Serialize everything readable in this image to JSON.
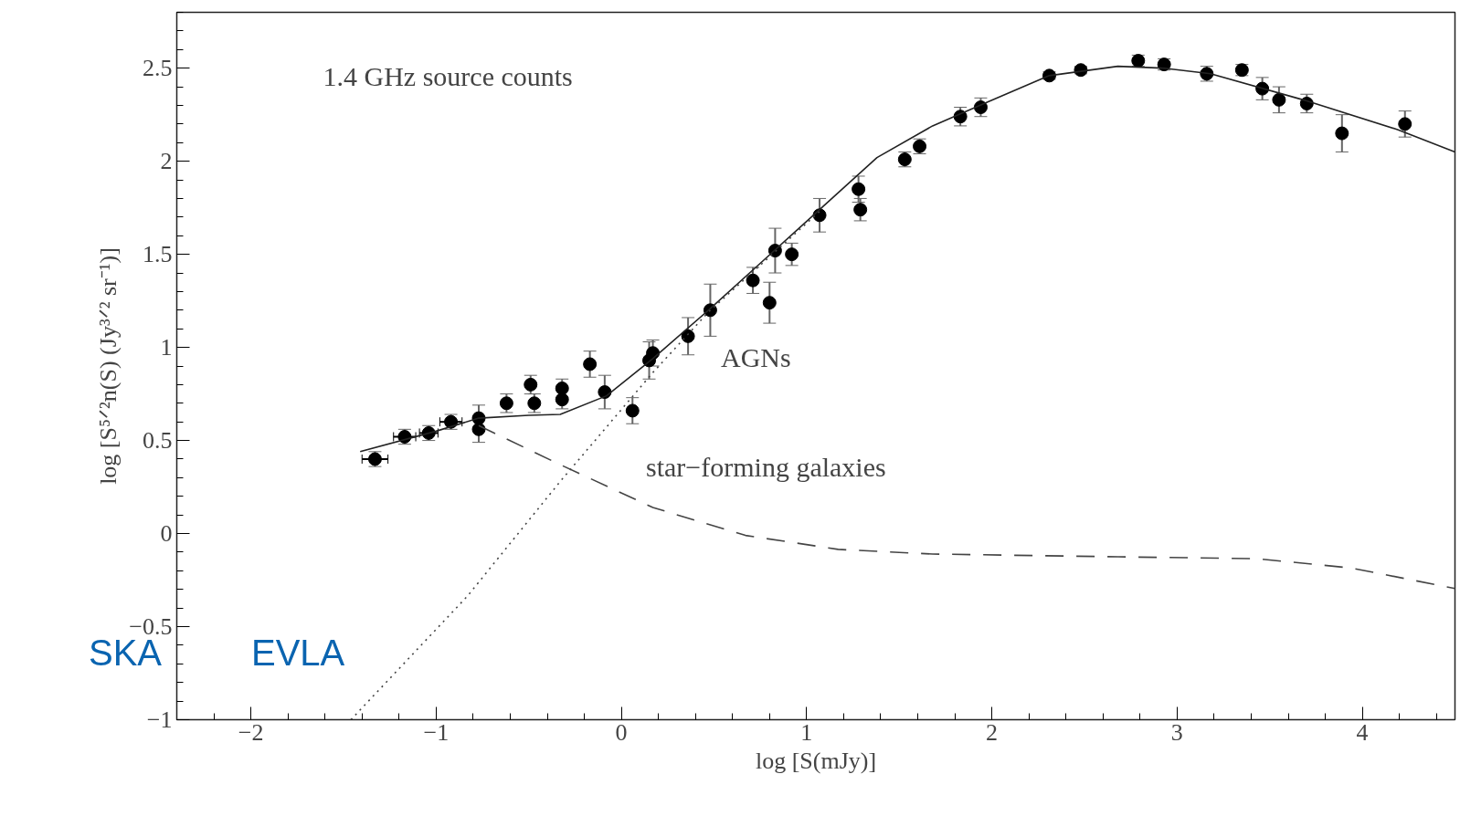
{
  "chart_data": {
    "type": "scatter",
    "title": "1.4 GHz source counts",
    "xlabel": "log [S(mJy)]",
    "ylabel": "log [S⁵ᐟ²n(S) (Jy³ᐟ² sr⁻¹)]",
    "xlim": [
      -2.4,
      4.5
    ],
    "ylim": [
      -1,
      2.8
    ],
    "xticks": [
      {
        "value": -2,
        "label": "−2"
      },
      {
        "value": -1,
        "label": "−1"
      },
      0,
      1,
      2,
      3,
      4
    ],
    "yticks": [
      {
        "value": -1,
        "label": "−1"
      },
      {
        "value": -0.5,
        "label": "−0.5"
      },
      0,
      0.5,
      1,
      1.5,
      2,
      2.5
    ],
    "grid": false,
    "series": [
      {
        "marker": "circle",
        "color": "#000000",
        "x": [
          -1.33,
          -1.17,
          -1.04,
          -0.92,
          -0.77,
          -0.77,
          -0.62,
          -0.49,
          -0.47,
          -0.32,
          -0.32,
          -0.17,
          -0.09,
          0.06,
          0.15,
          0.17,
          0.36,
          0.48,
          0.71,
          0.8,
          0.83,
          0.92,
          1.07,
          1.28,
          1.29,
          1.53,
          1.61,
          1.83,
          1.94,
          2.31,
          2.48,
          2.79,
          2.93,
          3.16,
          3.35,
          3.46,
          3.55,
          3.7,
          3.89,
          4.23
        ],
        "values": [
          0.4,
          0.52,
          0.54,
          0.6,
          0.62,
          0.56,
          0.7,
          0.8,
          0.7,
          0.78,
          0.72,
          0.91,
          0.76,
          0.66,
          0.93,
          0.97,
          1.06,
          1.2,
          1.36,
          1.24,
          1.52,
          1.5,
          1.71,
          1.85,
          1.74,
          2.01,
          2.08,
          2.24,
          2.29,
          2.46,
          2.49,
          2.54,
          2.52,
          2.47,
          2.49,
          2.39,
          2.33,
          2.31,
          2.15,
          2.2
        ],
        "errors": [
          0.04,
          0.04,
          0.04,
          0.04,
          0.07,
          0.07,
          0.05,
          0.05,
          0.05,
          0.05,
          0.05,
          0.07,
          0.09,
          0.07,
          0.1,
          0.07,
          0.1,
          0.14,
          0.07,
          0.11,
          0.12,
          0.06,
          0.09,
          0.07,
          0.06,
          0.04,
          0.04,
          0.05,
          0.05,
          0.02,
          0.02,
          0.03,
          0.03,
          0.04,
          0.03,
          0.06,
          0.07,
          0.05,
          0.1,
          0.07
        ],
        "xerrors": [
          0.07,
          0.06,
          0.05,
          0.06,
          null,
          null,
          null,
          null,
          null,
          null,
          null,
          null,
          null,
          null,
          null,
          null,
          null,
          null,
          null,
          null,
          null,
          null,
          null,
          null,
          null,
          null,
          null,
          null,
          null,
          null,
          null,
          null,
          null,
          null,
          null,
          null,
          null,
          null,
          null,
          null
        ]
      },
      {
        "type": "line",
        "line_style": "solid",
        "color": "#222222",
        "x": [
          -1.41,
          -1.0,
          -0.77,
          -0.5,
          -0.33,
          -0.08,
          0.17,
          0.47,
          0.77,
          1.07,
          1.38,
          1.68,
          1.98,
          2.31,
          2.68,
          2.93,
          3.18,
          3.68,
          4.19,
          4.5
        ],
        "values": [
          0.44,
          0.55,
          0.62,
          0.635,
          0.64,
          0.74,
          0.94,
          1.2,
          1.47,
          1.74,
          2.02,
          2.19,
          2.32,
          2.46,
          2.51,
          2.5,
          2.47,
          2.33,
          2.17,
          2.05
        ]
      },
      {
        "type": "line",
        "line_style": "dashed",
        "color": "#444444",
        "x": [
          -0.77,
          -0.33,
          0.17,
          0.67,
          1.17,
          1.68,
          2.68,
          3.43,
          3.94,
          4.5
        ],
        "values": [
          0.58,
          0.37,
          0.14,
          -0.01,
          -0.085,
          -0.11,
          -0.125,
          -0.135,
          -0.185,
          -0.295
        ]
      },
      {
        "type": "line",
        "line_style": "dotted",
        "color": "#444444",
        "x": [
          -1.46,
          -0.83,
          -0.33,
          0.17,
          0.47,
          0.77,
          1.07
        ],
        "values": [
          -1.0,
          -0.335,
          0.28,
          0.865,
          1.19,
          1.46,
          1.73
        ]
      }
    ],
    "annotations": [
      "AGNs",
      "star−forming galaxies",
      "SKA",
      "EVLA"
    ]
  }
}
